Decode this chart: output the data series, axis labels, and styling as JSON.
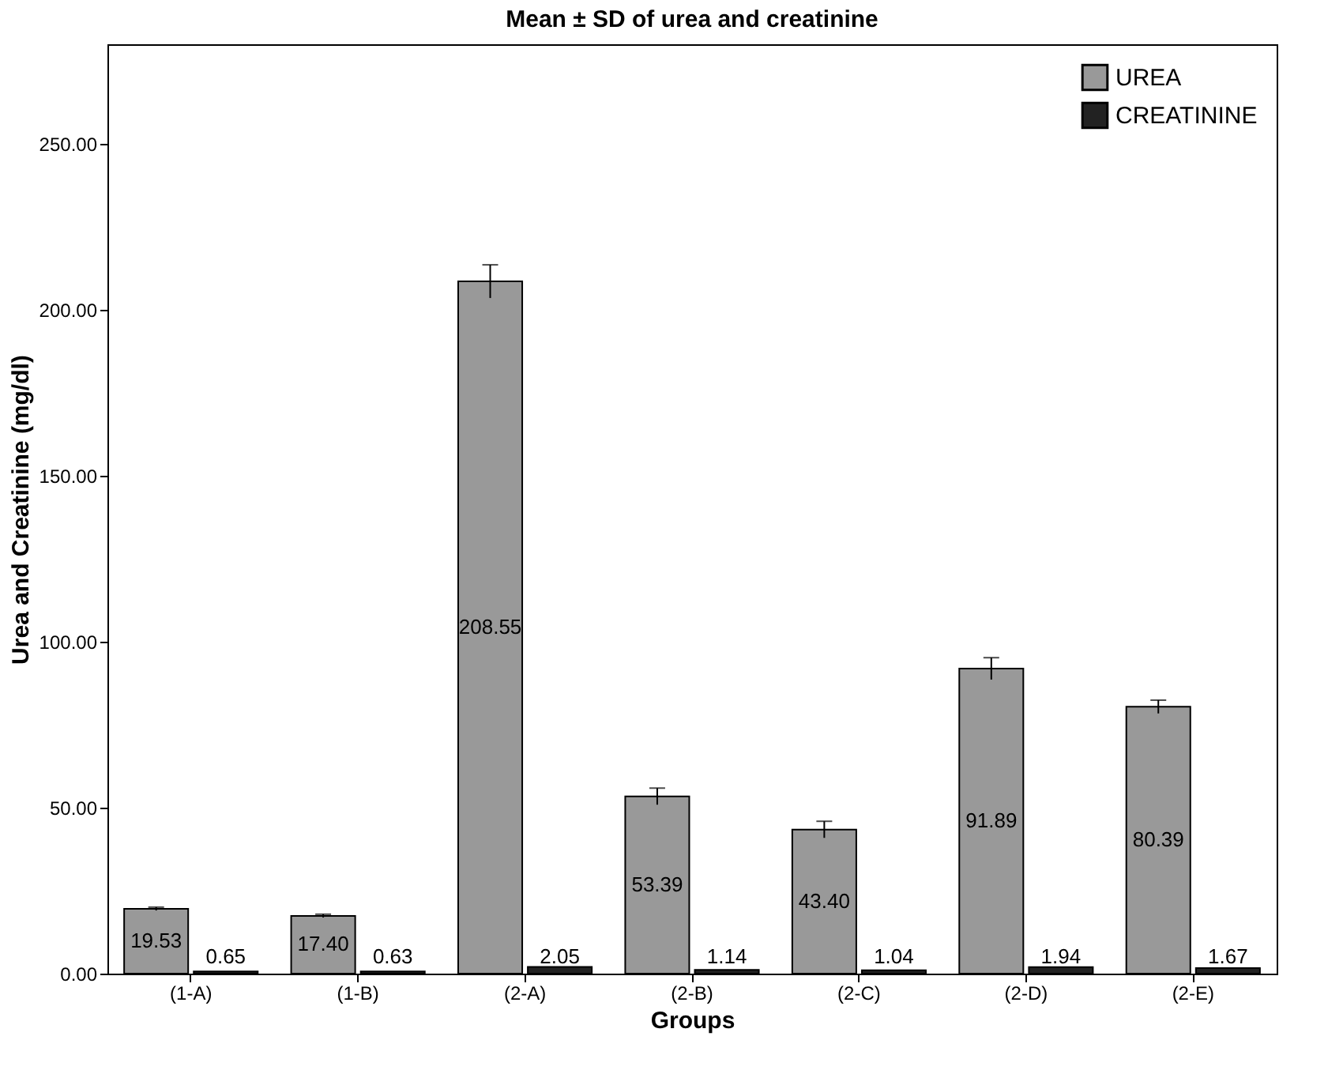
{
  "chart_data": {
    "type": "bar",
    "title": "Mean ± SD of  urea and creatinine",
    "xlabel": "Groups",
    "ylabel": "Urea and Creatinine (mg/dl)",
    "categories": [
      "(1-A)",
      "(1-B)",
      "(2-A)",
      "(2-B)",
      "(2-C)",
      "(2-D)",
      "(2-E)"
    ],
    "series": [
      {
        "name": "UREA",
        "color": "#999999",
        "values": [
          19.53,
          17.4,
          208.55,
          53.39,
          43.4,
          91.89,
          80.39
        ],
        "errors": [
          0.5,
          0.5,
          5,
          2.5,
          2.5,
          3.3,
          2
        ],
        "value_labels": [
          "19.53",
          "17.40",
          "208.55",
          "53.39",
          "43.40",
          "91.89",
          "80.39"
        ]
      },
      {
        "name": "CREATININE",
        "color": "#222222",
        "values": [
          0.65,
          0.63,
          2.05,
          1.14,
          1.04,
          1.94,
          1.67
        ],
        "value_labels": [
          "0.65",
          "0.63",
          "2.05",
          "1.14",
          "1.04",
          "1.94",
          "1.67"
        ]
      }
    ],
    "ylim": [
      0,
      280
    ],
    "yticks": [
      {
        "value": 0,
        "label": "0.00"
      },
      {
        "value": 50,
        "label": "50.00"
      },
      {
        "value": 100,
        "label": "100.00"
      },
      {
        "value": 150,
        "label": "150.00"
      },
      {
        "value": 200,
        "label": "200.00"
      },
      {
        "value": 250,
        "label": "250.00"
      }
    ],
    "grid": false,
    "legend": "top right"
  }
}
